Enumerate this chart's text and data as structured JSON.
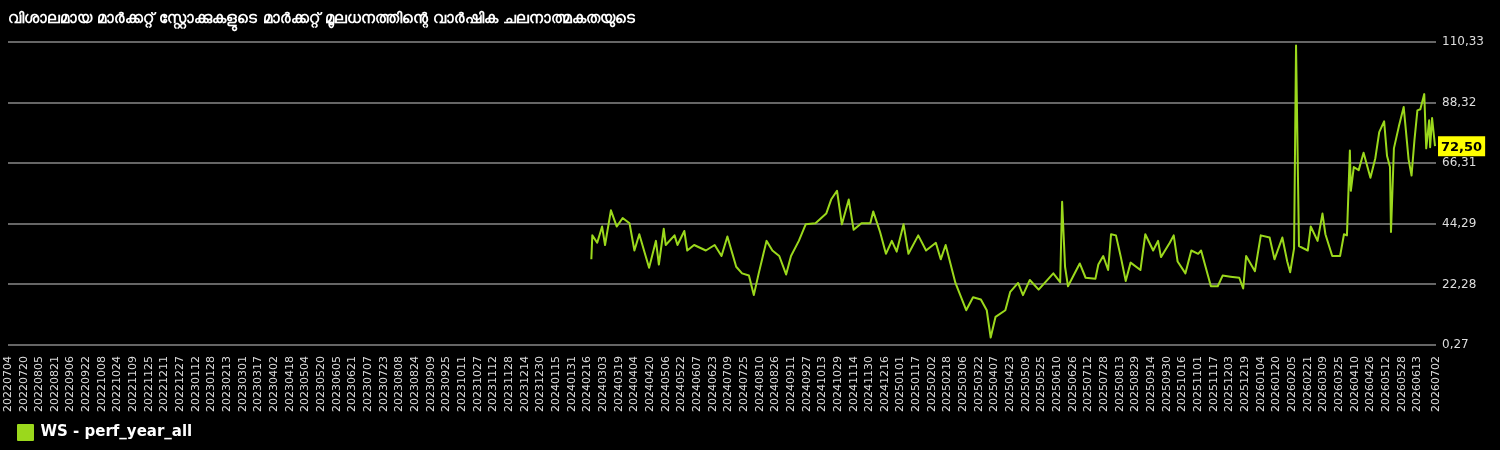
{
  "chart_data": {
    "type": "line",
    "title": "വിശാലമായ മാർക്കറ്റ് സ്റ്റോക്കുകളുടെ മാർക്കറ്റ് മൂലധനത്തിന്റെ വാർഷിക ചലനാത്മകതയുടെ",
    "x": [
      "2024-02-20",
      "2024-02-21",
      "2024-02-26",
      "2024-03-02",
      "2024-03-05",
      "2024-03-11",
      "2024-03-17",
      "2024-03-23",
      "2024-03-30",
      "2024-04-04",
      "2024-04-09",
      "2024-04-19",
      "2024-04-26",
      "2024-04-29",
      "2024-05-04",
      "2024-05-06",
      "2024-05-15",
      "2024-05-18",
      "2024-05-25",
      "2024-05-28",
      "2024-06-04",
      "2024-06-16",
      "2024-06-25",
      "2024-07-02",
      "2024-07-08",
      "2024-07-17",
      "2024-07-23",
      "2024-07-30",
      "2024-08-04",
      "2024-08-09",
      "2024-08-17",
      "2024-08-23",
      "2024-08-30",
      "2024-09-06",
      "2024-09-11",
      "2024-09-19",
      "2024-09-26",
      "2024-10-06",
      "2024-10-17",
      "2024-10-22",
      "2024-10-28",
      "2024-11-02",
      "2024-11-09",
      "2024-11-14",
      "2024-11-22",
      "2024-12-01",
      "2024-12-04",
      "2024-12-11",
      "2024-12-17",
      "2024-12-23",
      "2024-12-28",
      "2025-01-04",
      "2025-01-09",
      "2025-01-19",
      "2025-01-27",
      "2025-02-06",
      "2025-02-11",
      "2025-02-16",
      "2025-02-26",
      "2025-03-09",
      "2025-03-16",
      "2025-03-24",
      "2025-03-30",
      "2025-04-03",
      "2025-04-08",
      "2025-04-18",
      "2025-04-23",
      "2025-05-01",
      "2025-05-06",
      "2025-05-13",
      "2025-05-22",
      "2025-06-06",
      "2025-06-13",
      "2025-06-15",
      "2025-06-18",
      "2025-06-21",
      "2025-07-03",
      "2025-07-09",
      "2025-07-19",
      "2025-07-22",
      "2025-07-27",
      "2025-08-01",
      "2025-08-04",
      "2025-08-09",
      "2025-08-14",
      "2025-08-19",
      "2025-08-24",
      "2025-09-03",
      "2025-09-08",
      "2025-09-16",
      "2025-09-21",
      "2025-09-24",
      "2025-10-03",
      "2025-10-07",
      "2025-10-11",
      "2025-10-19",
      "2025-10-25",
      "2025-11-01",
      "2025-11-04",
      "2025-11-11",
      "2025-11-14",
      "2025-11-21",
      "2025-11-26",
      "2025-12-04",
      "2025-12-13",
      "2025-12-17",
      "2025-12-20",
      "2025-12-29",
      "2026-01-04",
      "2026-01-13",
      "2026-01-18",
      "2026-01-26",
      "2026-01-31",
      "2026-02-03",
      "2026-02-07",
      "2026-02-09",
      "2026-02-12",
      "2026-02-21",
      "2026-02-24",
      "2026-03-03",
      "2026-03-08",
      "2026-03-11",
      "2026-03-18",
      "2026-03-26",
      "2026-03-30",
      "2026-04-02",
      "2026-04-05",
      "2026-04-06",
      "2026-04-09",
      "2026-04-14",
      "2026-04-19",
      "2026-04-26",
      "2026-05-01",
      "2026-05-05",
      "2026-05-10",
      "2026-05-13",
      "2026-05-16",
      "2026-05-17",
      "2026-05-20",
      "2026-05-25",
      "2026-05-30",
      "2026-06-04",
      "2026-06-07",
      "2026-06-10",
      "2026-06-13",
      "2026-06-16",
      "2026-06-20",
      "2026-06-22",
      "2026-06-25",
      "2026-06-26",
      "2026-06-28",
      "2026-07-01"
    ],
    "series": [
      {
        "name": "WS - perf_year_all",
        "color": "#9bd81c",
        "values": [
          31.4,
          40.1,
          37.4,
          43.3,
          36.6,
          49.2,
          43.3,
          46.4,
          44.5,
          34.6,
          40.5,
          28.3,
          38.1,
          29.5,
          42.5,
          36.6,
          40.1,
          36.6,
          41.7,
          34.6,
          36.6,
          34.6,
          36.6,
          32.6,
          39.7,
          28.7,
          26.3,
          25.5,
          18.4,
          26.3,
          38.1,
          34.6,
          32.6,
          25.9,
          32.6,
          38.1,
          44.1,
          44.5,
          48.0,
          53.1,
          56.3,
          44.1,
          53.1,
          42.1,
          44.5,
          44.5,
          48.8,
          41.3,
          33.4,
          38.1,
          34.2,
          44.1,
          33.4,
          40.1,
          34.6,
          37.4,
          31.4,
          36.6,
          22.8,
          12.9,
          17.6,
          16.8,
          12.9,
          3.0,
          10.5,
          12.9,
          19.6,
          22.8,
          18.4,
          23.9,
          20.4,
          26.3,
          23.1,
          52.3,
          28.7,
          21.6,
          29.9,
          24.7,
          24.3,
          29.5,
          32.6,
          27.5,
          40.5,
          40.1,
          32.2,
          23.5,
          30.2,
          27.5,
          40.5,
          34.6,
          38.1,
          32.2,
          37.4,
          40.1,
          30.6,
          26.3,
          34.6,
          33.4,
          34.6,
          25.5,
          21.6,
          21.6,
          25.5,
          25.1,
          24.7,
          20.8,
          32.6,
          27.1,
          40.1,
          39.3,
          31.4,
          39.3,
          30.6,
          26.7,
          35.4,
          109.1,
          36.2,
          34.6,
          43.3,
          38.1,
          48.0,
          40.5,
          32.6,
          32.6,
          40.5,
          40.1,
          70.9,
          56.3,
          64.9,
          63.8,
          70.1,
          61.0,
          68.1,
          77.6,
          81.5,
          68.9,
          64.9,
          41.3,
          71.7,
          79.6,
          86.7,
          67.7,
          61.8,
          74.8,
          85.5,
          85.9,
          91.4,
          71.7,
          81.9,
          72.1,
          82.7,
          72.5
        ]
      }
    ],
    "xlim": [
      "2022-07-04",
      "2026-07-02"
    ],
    "xticks": [
      {
        "value": "2022-07-04",
        "label": "20220704"
      },
      {
        "value": "2022-07-20",
        "label": "20220720"
      },
      {
        "value": "2022-08-05",
        "label": "20220805"
      },
      {
        "value": "2022-08-21",
        "label": "20220821"
      },
      {
        "value": "2022-09-06",
        "label": "20220906"
      },
      {
        "value": "2022-09-22",
        "label": "20220922"
      },
      {
        "value": "2022-10-08",
        "label": "20221008"
      },
      {
        "value": "2022-10-24",
        "label": "20221024"
      },
      {
        "value": "2022-11-09",
        "label": "20221109"
      },
      {
        "value": "2022-11-25",
        "label": "20221125"
      },
      {
        "value": "2022-12-11",
        "label": "20221211"
      },
      {
        "value": "2022-12-27",
        "label": "20221227"
      },
      {
        "value": "2023-01-12",
        "label": "20230112"
      },
      {
        "value": "2023-01-28",
        "label": "20230128"
      },
      {
        "value": "2023-02-13",
        "label": "20230213"
      },
      {
        "value": "2023-03-01",
        "label": "20230301"
      },
      {
        "value": "2023-03-17",
        "label": "20230317"
      },
      {
        "value": "2023-04-02",
        "label": "20230402"
      },
      {
        "value": "2023-04-18",
        "label": "20230418"
      },
      {
        "value": "2023-05-04",
        "label": "20230504"
      },
      {
        "value": "2023-05-20",
        "label": "20230520"
      },
      {
        "value": "2023-06-05",
        "label": "20230605"
      },
      {
        "value": "2023-06-21",
        "label": "20230621"
      },
      {
        "value": "2023-07-07",
        "label": "20230707"
      },
      {
        "value": "2023-07-23",
        "label": "20230723"
      },
      {
        "value": "2023-08-08",
        "label": "20230808"
      },
      {
        "value": "2023-08-24",
        "label": "20230824"
      },
      {
        "value": "2023-09-09",
        "label": "20230909"
      },
      {
        "value": "2023-09-25",
        "label": "20230925"
      },
      {
        "value": "2023-10-11",
        "label": "20231011"
      },
      {
        "value": "2023-10-27",
        "label": "20231027"
      },
      {
        "value": "2023-11-12",
        "label": "20231112"
      },
      {
        "value": "2023-11-28",
        "label": "20231128"
      },
      {
        "value": "2023-12-14",
        "label": "20231214"
      },
      {
        "value": "2023-12-30",
        "label": "20231230"
      },
      {
        "value": "2024-01-15",
        "label": "20240115"
      },
      {
        "value": "2024-01-31",
        "label": "20240131"
      },
      {
        "value": "2024-02-16",
        "label": "20240216"
      },
      {
        "value": "2024-03-03",
        "label": "20240303"
      },
      {
        "value": "2024-03-19",
        "label": "20240319"
      },
      {
        "value": "2024-04-04",
        "label": "20240404"
      },
      {
        "value": "2024-04-20",
        "label": "20240420"
      },
      {
        "value": "2024-05-06",
        "label": "20240506"
      },
      {
        "value": "2024-05-22",
        "label": "20240522"
      },
      {
        "value": "2024-06-07",
        "label": "20240607"
      },
      {
        "value": "2024-06-23",
        "label": "20240623"
      },
      {
        "value": "2024-07-09",
        "label": "20240709"
      },
      {
        "value": "2024-07-25",
        "label": "20240725"
      },
      {
        "value": "2024-08-10",
        "label": "20240810"
      },
      {
        "value": "2024-08-26",
        "label": "20240826"
      },
      {
        "value": "2024-09-11",
        "label": "20240911"
      },
      {
        "value": "2024-09-27",
        "label": "20240927"
      },
      {
        "value": "2024-10-13",
        "label": "20241013"
      },
      {
        "value": "2024-10-29",
        "label": "20241029"
      },
      {
        "value": "2024-11-14",
        "label": "20241114"
      },
      {
        "value": "2024-11-30",
        "label": "20241130"
      },
      {
        "value": "2024-12-16",
        "label": "20241216"
      },
      {
        "value": "2025-01-01",
        "label": "20250101"
      },
      {
        "value": "2025-01-17",
        "label": "20250117"
      },
      {
        "value": "2025-02-02",
        "label": "20250202"
      },
      {
        "value": "2025-02-18",
        "label": "20250218"
      },
      {
        "value": "2025-03-06",
        "label": "20250306"
      },
      {
        "value": "2025-03-22",
        "label": "20250322"
      },
      {
        "value": "2025-04-07",
        "label": "20250407"
      },
      {
        "value": "2025-04-23",
        "label": "20250423"
      },
      {
        "value": "2025-05-09",
        "label": "20250509"
      },
      {
        "value": "2025-05-25",
        "label": "20250525"
      },
      {
        "value": "2025-06-10",
        "label": "20250610"
      },
      {
        "value": "2025-06-26",
        "label": "20250626"
      },
      {
        "value": "2025-07-12",
        "label": "20250712"
      },
      {
        "value": "2025-07-28",
        "label": "20250728"
      },
      {
        "value": "2025-08-13",
        "label": "20250813"
      },
      {
        "value": "2025-08-29",
        "label": "20250829"
      },
      {
        "value": "2025-09-14",
        "label": "20250914"
      },
      {
        "value": "2025-09-30",
        "label": "20250930"
      },
      {
        "value": "2025-10-16",
        "label": "20251016"
      },
      {
        "value": "2025-11-01",
        "label": "20251101"
      },
      {
        "value": "2025-11-17",
        "label": "20251117"
      },
      {
        "value": "2025-12-03",
        "label": "20251203"
      },
      {
        "value": "2025-12-19",
        "label": "20251219"
      },
      {
        "value": "2026-01-04",
        "label": "20260104"
      },
      {
        "value": "2026-01-20",
        "label": "20260120"
      },
      {
        "value": "2026-02-05",
        "label": "20260205"
      },
      {
        "value": "2026-02-21",
        "label": "20260221"
      },
      {
        "value": "2026-03-09",
        "label": "20260309"
      },
      {
        "value": "2026-03-25",
        "label": "20260325"
      },
      {
        "value": "2026-04-10",
        "label": "20260410"
      },
      {
        "value": "2026-04-26",
        "label": "20260426"
      },
      {
        "value": "2026-05-12",
        "label": "20260512"
      },
      {
        "value": "2026-05-28",
        "label": "20260528"
      },
      {
        "value": "2026-06-13",
        "label": "20260613"
      },
      {
        "value": "2026-07-02",
        "label": "20260702"
      }
    ],
    "ylim": [
      0.27,
      110.33
    ],
    "yticks": [
      {
        "value": 0.27,
        "label": "0,27"
      },
      {
        "value": 22.28,
        "label": "22,28"
      },
      {
        "value": 44.29,
        "label": "44,29"
      },
      {
        "value": 66.31,
        "label": "66,31"
      },
      {
        "value": 88.32,
        "label": "88,32"
      },
      {
        "value": 110.33,
        "label": "110,33"
      }
    ],
    "annotations": [
      {
        "text": "72,50",
        "x": "2026-07-01",
        "y": 72.5
      }
    ],
    "grid": "y",
    "legend": "bottom left",
    "marker": "none",
    "line_style": "solid"
  }
}
